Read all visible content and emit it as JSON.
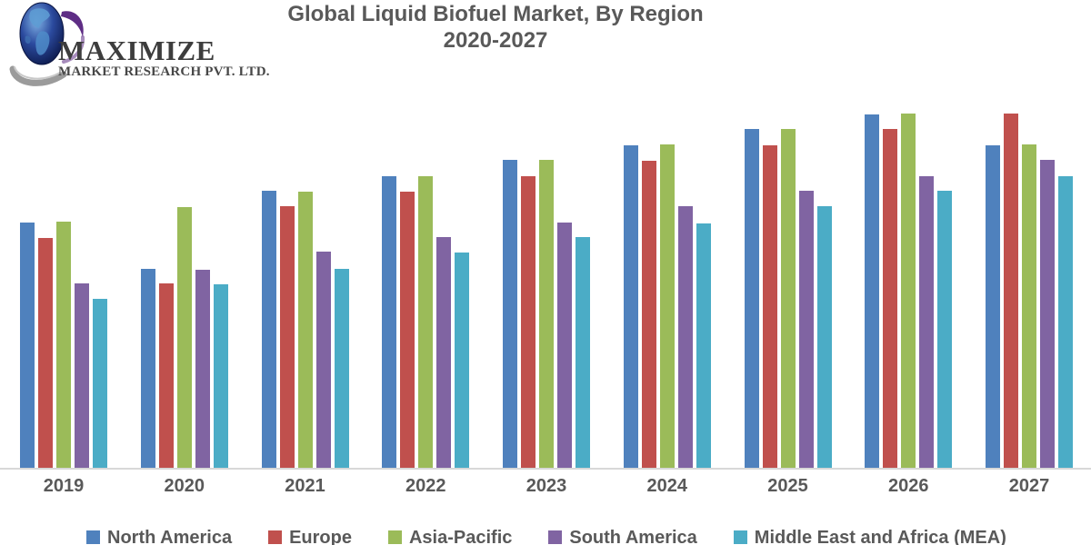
{
  "logo": {
    "company": "MAXIMIZE",
    "subtitle": "MARKET RESEARCH PVT. LTD."
  },
  "title": {
    "line1": "Global Liquid Biofuel Market, By Region",
    "line2": "2020-2027"
  },
  "chart_data": {
    "type": "bar",
    "title": "Global Liquid Biofuel Market, By Region 2020-2027",
    "xlabel": "",
    "ylabel": "",
    "y_axis_shown": false,
    "grid": false,
    "legend_position": "bottom",
    "ylim": [
      0,
      420
    ],
    "categories": [
      "2019",
      "2020",
      "2021",
      "2022",
      "2023",
      "2024",
      "2025",
      "2026",
      "2027"
    ],
    "series": [
      {
        "name": "North America",
        "color": "#4F81BD",
        "values": [
          270,
          219,
          305,
          321,
          339,
          355,
          373,
          389,
          355
        ]
      },
      {
        "name": "Europe",
        "color": "#C0504D",
        "values": [
          253,
          203,
          288,
          304,
          321,
          338,
          355,
          373,
          390
        ]
      },
      {
        "name": "Asia-Pacific",
        "color": "#9BBB59",
        "values": [
          271,
          287,
          304,
          321,
          339,
          356,
          373,
          390,
          356
        ]
      },
      {
        "name": "South America",
        "color": "#8064A2",
        "values": [
          203,
          218,
          238,
          254,
          270,
          288,
          305,
          321,
          339
        ]
      },
      {
        "name": "Middle East and Africa (MEA)",
        "color": "#4BACC6",
        "values": [
          186,
          202,
          219,
          237,
          254,
          269,
          288,
          305,
          321
        ]
      }
    ]
  },
  "colors": {
    "title_text": "#595959",
    "axis_labels": "#595959",
    "legend_text": "#595959",
    "axis_line": "#D8D8D8",
    "background": "#FFFFFF"
  }
}
